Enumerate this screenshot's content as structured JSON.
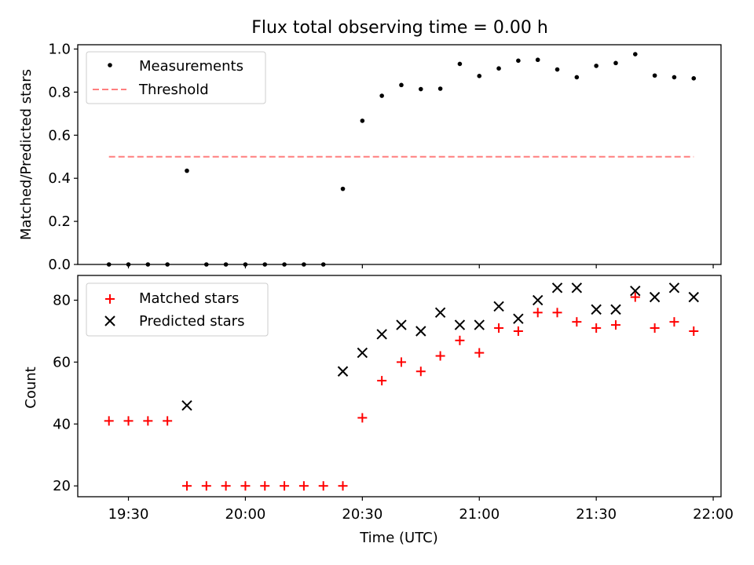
{
  "chart_data": [
    {
      "type": "scatter",
      "title": "Flux total observing time = 0.00 h",
      "xlabel": "",
      "ylabel": "Matched/Predicted stars",
      "ylim": [
        0,
        1.02
      ],
      "yticks": [
        "0.0",
        "0.2",
        "0.4",
        "0.6",
        "0.8",
        "1.0"
      ],
      "ytick_values": [
        0,
        0.2,
        0.4,
        0.6,
        0.8,
        1.0
      ],
      "legend": {
        "position": "top-left",
        "entries": [
          "Measurements",
          "Threshold"
        ]
      },
      "threshold": {
        "name": "Threshold",
        "value": 0.5,
        "x_start": "19:25",
        "x_end": "21:55",
        "color": "#ff7f7f"
      },
      "series": [
        {
          "name": "Measurements",
          "marker": "dot",
          "color": "#000000",
          "x": [
            "19:25",
            "19:30",
            "19:35",
            "19:40",
            "19:45",
            "19:50",
            "19:55",
            "20:00",
            "20:05",
            "20:10",
            "20:15",
            "20:20",
            "20:25",
            "20:30",
            "20:35",
            "20:40",
            "20:45",
            "20:50",
            "20:55",
            "21:00",
            "21:05",
            "21:10",
            "21:15",
            "21:20",
            "21:25",
            "21:30",
            "21:35",
            "21:40",
            "21:45",
            "21:50",
            "21:55"
          ],
          "values": [
            0,
            0,
            0,
            0,
            0.435,
            0,
            0,
            0,
            0,
            0,
            0,
            0,
            0.351,
            0.667,
            0.783,
            0.833,
            0.814,
            0.816,
            0.931,
            0.875,
            0.91,
            0.946,
            0.95,
            0.905,
            0.869,
            0.922,
            0.935,
            0.976,
            0.877,
            0.869,
            0.864
          ]
        }
      ]
    },
    {
      "type": "scatter",
      "title": "",
      "xlabel": "Time (UTC)",
      "ylabel": "Count",
      "ylim": [
        16.5,
        88
      ],
      "yticks": [
        "20",
        "40",
        "60",
        "80"
      ],
      "ytick_values": [
        20,
        40,
        60,
        80
      ],
      "xlim": [
        "19:17",
        "22:02"
      ],
      "xticks": [
        "19:30",
        "20:00",
        "20:30",
        "21:00",
        "21:30",
        "22:00"
      ],
      "legend": {
        "position": "top-left",
        "entries": [
          "Matched stars",
          "Predicted stars"
        ]
      },
      "series": [
        {
          "name": "Matched stars",
          "marker": "plus",
          "color": "#ff0000",
          "x": [
            "19:25",
            "19:30",
            "19:35",
            "19:40",
            "19:45",
            "19:50",
            "19:55",
            "20:00",
            "20:05",
            "20:10",
            "20:15",
            "20:20",
            "20:25",
            "20:30",
            "20:35",
            "20:40",
            "20:45",
            "20:50",
            "20:55",
            "21:00",
            "21:05",
            "21:10",
            "21:15",
            "21:20",
            "21:25",
            "21:30",
            "21:35",
            "21:40",
            "21:45",
            "21:50",
            "21:55"
          ],
          "values": [
            41,
            41,
            41,
            41,
            20,
            20,
            20,
            20,
            20,
            20,
            20,
            20,
            20,
            42,
            54,
            60,
            57,
            62,
            67,
            63,
            71,
            70,
            76,
            76,
            73,
            71,
            72,
            81,
            71,
            73,
            70
          ]
        },
        {
          "name": "Predicted stars",
          "marker": "x",
          "color": "#000000",
          "x": [
            "19:45",
            "20:25",
            "20:30",
            "20:35",
            "20:40",
            "20:45",
            "20:50",
            "20:55",
            "21:00",
            "21:05",
            "21:10",
            "21:15",
            "21:20",
            "21:25",
            "21:30",
            "21:35",
            "21:40",
            "21:45",
            "21:50",
            "21:55"
          ],
          "values": [
            46,
            57,
            63,
            69,
            72,
            70,
            76,
            72,
            72,
            78,
            74,
            80,
            84,
            84,
            77,
            77,
            83,
            81,
            84,
            81
          ]
        }
      ]
    }
  ]
}
